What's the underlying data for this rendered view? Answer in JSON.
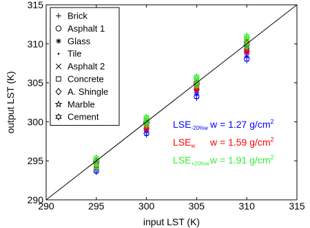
{
  "chart_data": {
    "type": "scatter",
    "xlabel": "input LST (K)",
    "ylabel": "output LST (K)",
    "xlim": [
      290,
      315
    ],
    "ylim": [
      290,
      315
    ],
    "xticks": [
      "290",
      "295",
      "300",
      "305",
      "310",
      "315"
    ],
    "yticks": [
      "290",
      "295",
      "300",
      "305",
      "310",
      "315"
    ],
    "grid": false,
    "reference_line": {
      "type": "identity",
      "x": [
        290,
        315
      ],
      "y": [
        290,
        315
      ]
    },
    "legend": {
      "placement": "top-left",
      "entries": [
        {
          "label": "Brick",
          "marker": "plus"
        },
        {
          "label": "Asphalt 1",
          "marker": "circle"
        },
        {
          "label": "Glass",
          "marker": "asterisk"
        },
        {
          "label": "Tile",
          "marker": "dot"
        },
        {
          "label": "Asphalt 2",
          "marker": "cross"
        },
        {
          "label": "Concrete",
          "marker": "square"
        },
        {
          "label": "A. Shingle",
          "marker": "diamond"
        },
        {
          "label": "Marble",
          "marker": "star5"
        },
        {
          "label": "Cement",
          "marker": "hexagram"
        }
      ]
    },
    "groups": [
      {
        "name": "LSE-20%w",
        "color": "#0000ff",
        "ranges": [
          {
            "x": 295,
            "y": [
              293.5,
              295.0
            ]
          },
          {
            "x": 300,
            "y": [
              298.3,
              300.0
            ]
          },
          {
            "x": 305,
            "y": [
              303.0,
              305.0
            ]
          },
          {
            "x": 310,
            "y": [
              307.8,
              310.0
            ]
          }
        ]
      },
      {
        "name": "LSEw",
        "color": "#ff0000",
        "ranges": [
          {
            "x": 295,
            "y": [
              294.0,
              295.0
            ]
          },
          {
            "x": 300,
            "y": [
              299.0,
              300.0
            ]
          },
          {
            "x": 305,
            "y": [
              304.0,
              305.0
            ]
          },
          {
            "x": 310,
            "y": [
              308.8,
              310.3
            ]
          }
        ]
      },
      {
        "name": "LSE+20%w",
        "color": "#33ee33",
        "ranges": [
          {
            "x": 295,
            "y": [
              294.0,
              295.4
            ]
          },
          {
            "x": 300,
            "y": [
              299.5,
              300.6
            ]
          },
          {
            "x": 305,
            "y": [
              304.5,
              305.8
            ]
          },
          {
            "x": 310,
            "y": [
              309.5,
              311.0
            ]
          }
        ]
      }
    ],
    "annotations": [
      {
        "lse": "LSE",
        "sub": "-20%w",
        "text": "w = 1.27 g/cm",
        "sup": "2",
        "color": "#0000ff"
      },
      {
        "lse": "LSE",
        "sub": "w",
        "text": "w = 1.59 g/cm",
        "sup": "2",
        "color": "#ff0000"
      },
      {
        "lse": "LSE",
        "sub": "+20%w",
        "text": "w = 1.91 g/cm",
        "sup": "2",
        "color": "#33ee33"
      }
    ]
  }
}
